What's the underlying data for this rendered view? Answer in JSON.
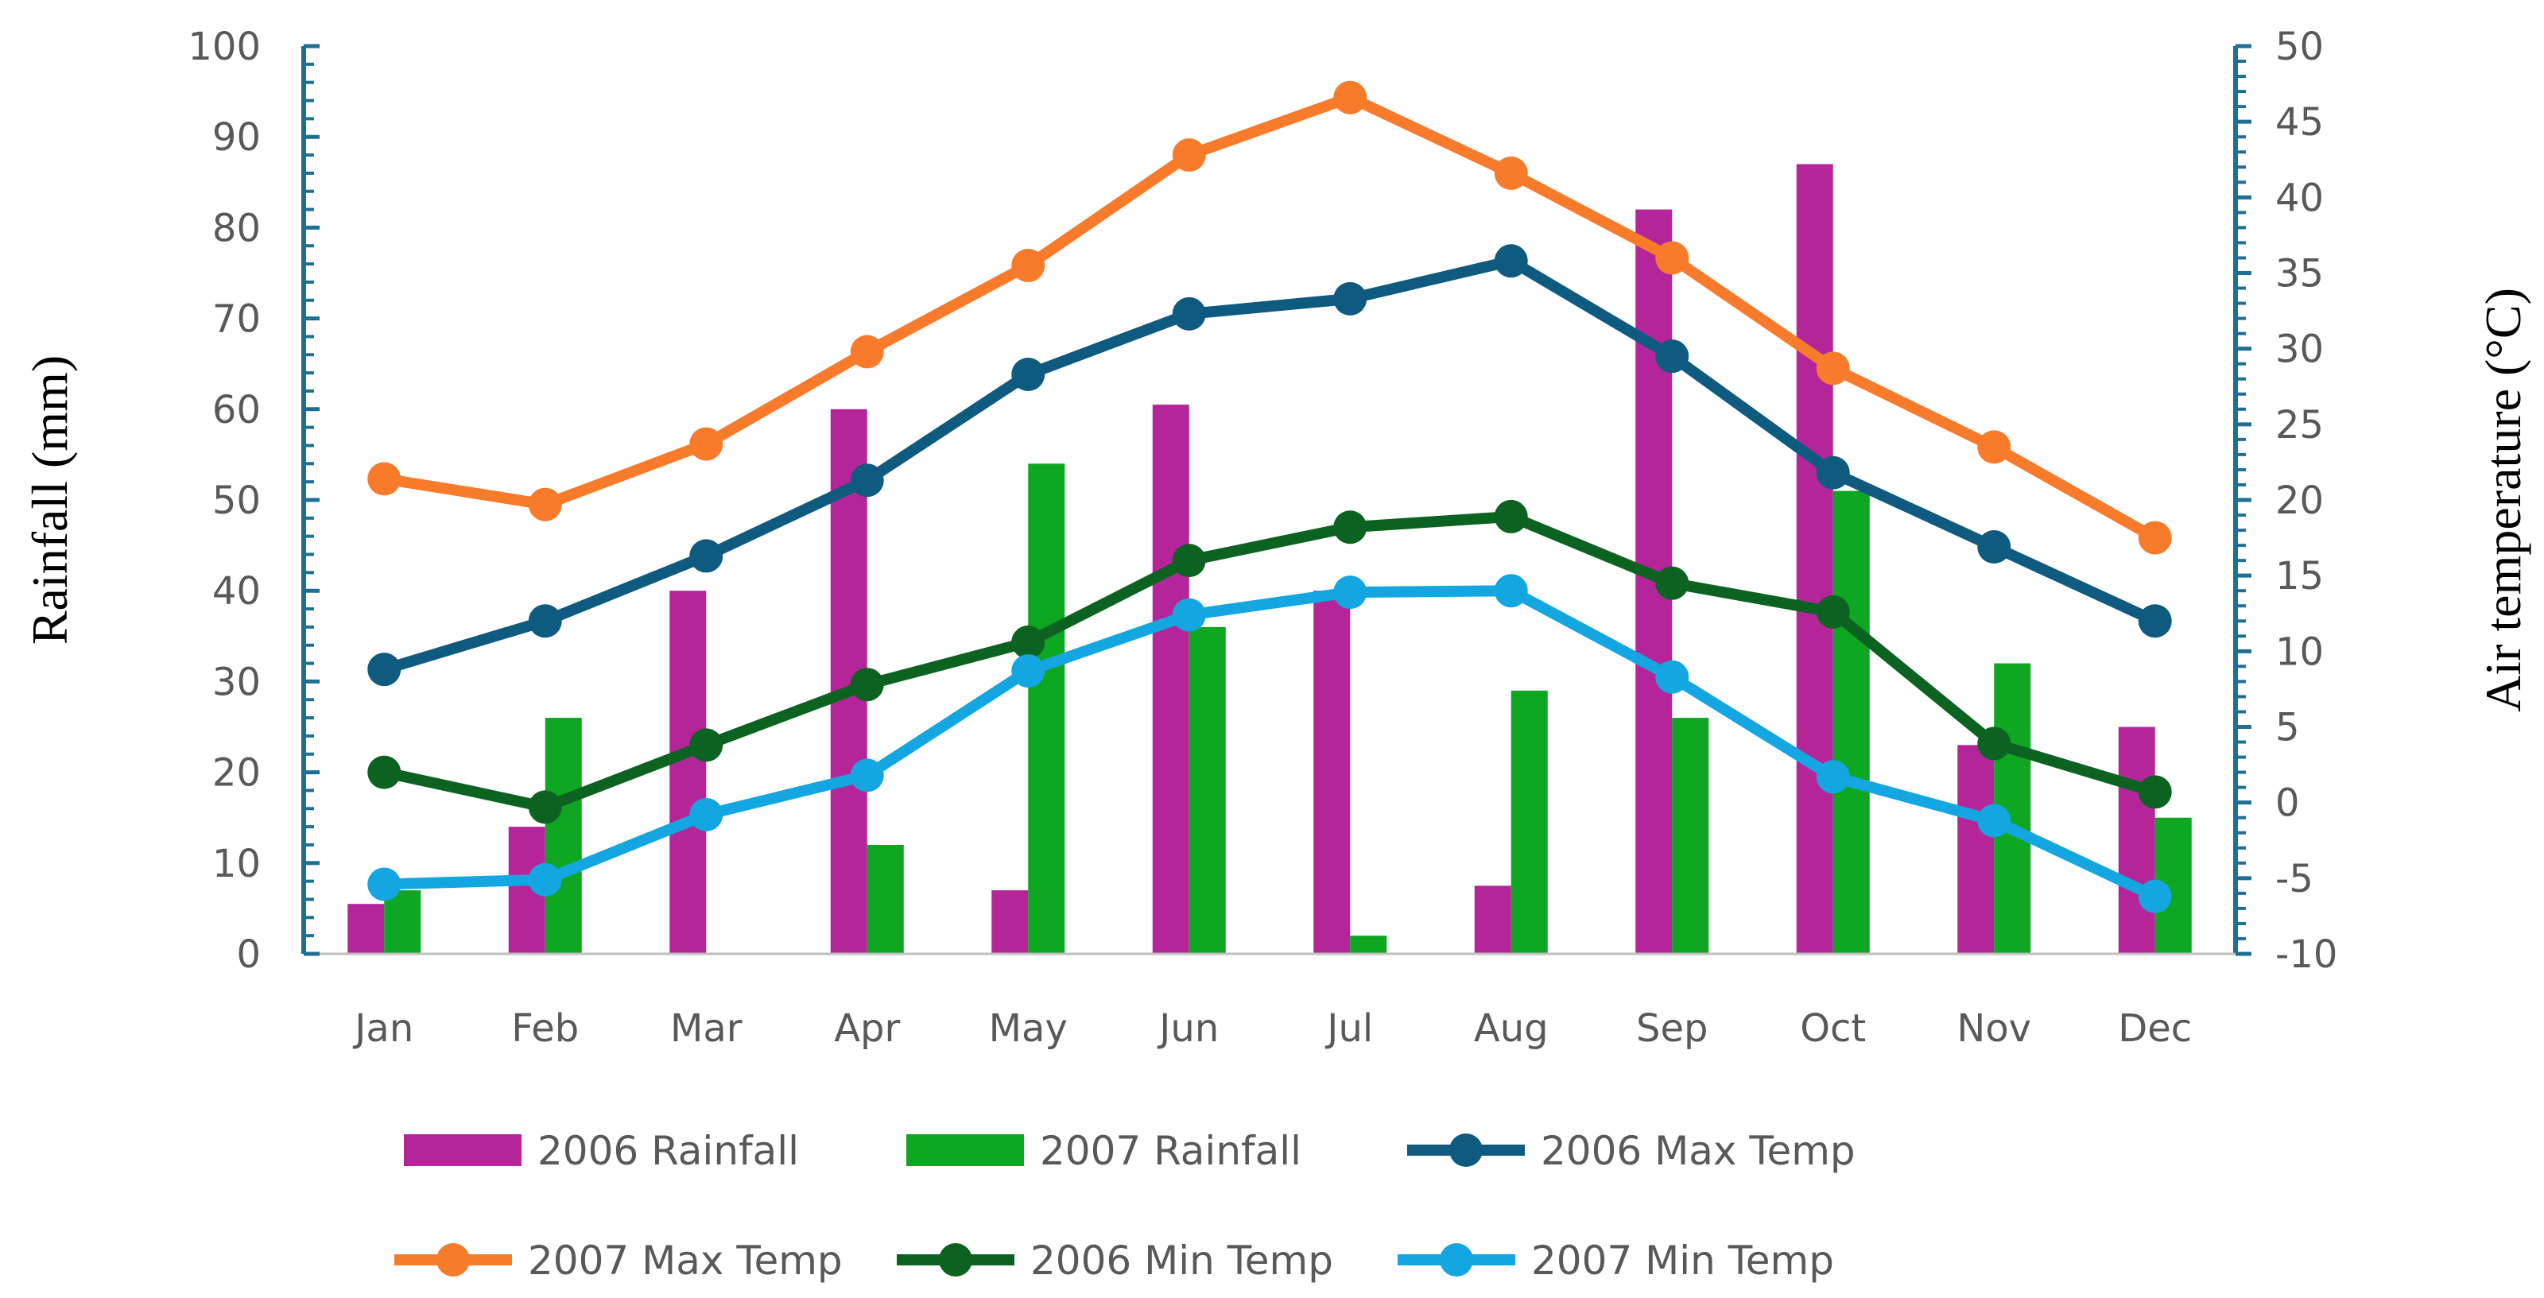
{
  "chart_data": {
    "type": "bar",
    "categories": [
      "Jan",
      "Feb",
      "Mar",
      "Apr",
      "May",
      "Jun",
      "Jul",
      "Aug",
      "Sep",
      "Oct",
      "Nov",
      "Dec"
    ],
    "ylabel": "Rainfall (mm)",
    "y2label": "Air temperature (°C)",
    "ylim": [
      0,
      100
    ],
    "y2lim": [
      -10,
      50
    ],
    "yticks": [
      "0",
      "10",
      "20",
      "30",
      "40",
      "50",
      "60",
      "70",
      "80",
      "90",
      "100"
    ],
    "y2ticks": [
      "-10",
      "-5",
      "0",
      "5",
      "10",
      "15",
      "20",
      "25",
      "30",
      "35",
      "40",
      "45",
      "50"
    ],
    "grid": false,
    "legend_position": "bottom",
    "bar_series": [
      {
        "name": "2006 Rainfall",
        "color": "#b5259a",
        "values": [
          5.5,
          14,
          40,
          60,
          7,
          60.5,
          40,
          7.5,
          82,
          87,
          23,
          25
        ]
      },
      {
        "name": "2007 Rainfall",
        "color": "#0ea721",
        "values": [
          7,
          26,
          0,
          12,
          54,
          36,
          2,
          29,
          26,
          51,
          32,
          15
        ]
      }
    ],
    "line_series": [
      {
        "name": "2006 Max Temp",
        "color": "#0f5a7f",
        "values": [
          8.8,
          12,
          16.3,
          21.3,
          28.3,
          32.3,
          33.3,
          35.8,
          29.5,
          21.8,
          16.9,
          12
        ]
      },
      {
        "name": "2007 Max Temp",
        "color": "#f87b2c",
        "values": [
          21.4,
          19.7,
          23.7,
          29.8,
          35.5,
          42.8,
          46.6,
          41.6,
          36,
          28.7,
          23.5,
          17.5
        ]
      },
      {
        "name": "2006 Min Temp",
        "color": "#0c6321",
        "values": [
          2,
          -0.3,
          3.8,
          7.8,
          10.6,
          16,
          18.2,
          18.9,
          14.5,
          12.6,
          3.9,
          0.7
        ]
      },
      {
        "name": "2007 Min Temp",
        "color": "#14a6e0",
        "values": [
          -5.4,
          -5.1,
          -0.8,
          1.8,
          8.7,
          12.4,
          13.9,
          14,
          8.3,
          1.7,
          -1.2,
          -6.2
        ]
      }
    ],
    "legend": [
      {
        "label": "2006 Rainfall",
        "kind": "bar",
        "color": "#b5259a"
      },
      {
        "label": "2007 Rainfall",
        "kind": "bar",
        "color": "#0ea721"
      },
      {
        "label": "2006 Max Temp",
        "kind": "line",
        "color": "#0f5a7f"
      },
      {
        "label": "2007 Max Temp",
        "kind": "line",
        "color": "#f87b2c"
      },
      {
        "label": "2006 Min Temp",
        "kind": "line",
        "color": "#0c6321"
      },
      {
        "label": "2007 Min Temp",
        "kind": "line",
        "color": "#14a6e0"
      }
    ],
    "axis_color": "#1f6f93"
  }
}
